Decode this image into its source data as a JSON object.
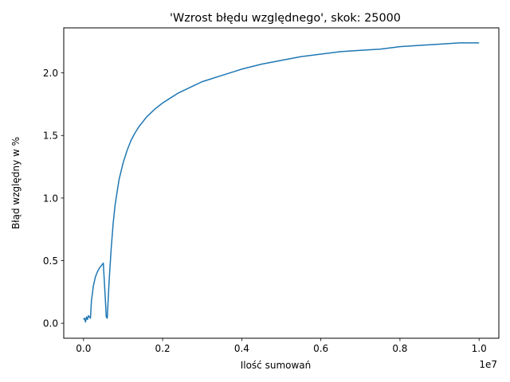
{
  "chart_data": {
    "type": "line",
    "title": "'Wzrost błędu względnego', skok: 25000",
    "xlabel": "Ilość sumowań",
    "ylabel": "Błąd względny w %",
    "x_offset_label": "1e7",
    "xlim": [
      -500000,
      10500000
    ],
    "ylim": [
      -0.12,
      2.36
    ],
    "x_ticks": [
      0,
      2000000,
      4000000,
      6000000,
      8000000,
      10000000
    ],
    "x_tick_labels": [
      "0.0",
      "0.2",
      "0.4",
      "0.6",
      "0.8",
      "1.0"
    ],
    "y_ticks": [
      0.0,
      0.5,
      1.0,
      1.5,
      2.0
    ],
    "y_tick_labels": [
      "0.0",
      "0.5",
      "1.0",
      "1.5",
      "2.0"
    ],
    "grid": false,
    "series": [
      {
        "color": "#1f77b4",
        "x": [
          0,
          25000,
          50000,
          75000,
          100000,
          125000,
          150000,
          175000,
          200000,
          250000,
          300000,
          350000,
          400000,
          450000,
          500000,
          550000,
          575000,
          600000,
          625000,
          650000,
          700000,
          750000,
          800000,
          900000,
          1000000,
          1100000,
          1200000,
          1300000,
          1400000,
          1500000,
          1600000,
          1700000,
          1800000,
          2000000,
          2200000,
          2400000,
          2600000,
          2800000,
          3000000,
          3200000,
          3400000,
          3600000,
          3800000,
          4000000,
          4500000,
          5000000,
          5500000,
          6000000,
          6500000,
          7000000,
          7500000,
          8000000,
          8500000,
          9000000,
          9500000,
          10000000
        ],
        "y": [
          0.03,
          0.04,
          0.01,
          0.05,
          0.03,
          0.06,
          0.05,
          0.04,
          0.18,
          0.3,
          0.37,
          0.41,
          0.44,
          0.46,
          0.48,
          0.2,
          0.05,
          0.04,
          0.2,
          0.35,
          0.6,
          0.8,
          0.95,
          1.15,
          1.28,
          1.38,
          1.46,
          1.52,
          1.57,
          1.61,
          1.65,
          1.68,
          1.71,
          1.76,
          1.8,
          1.84,
          1.87,
          1.9,
          1.93,
          1.95,
          1.97,
          1.99,
          2.01,
          2.03,
          2.07,
          2.1,
          2.13,
          2.15,
          2.17,
          2.18,
          2.19,
          2.21,
          2.22,
          2.23,
          2.24,
          2.24
        ]
      }
    ]
  }
}
